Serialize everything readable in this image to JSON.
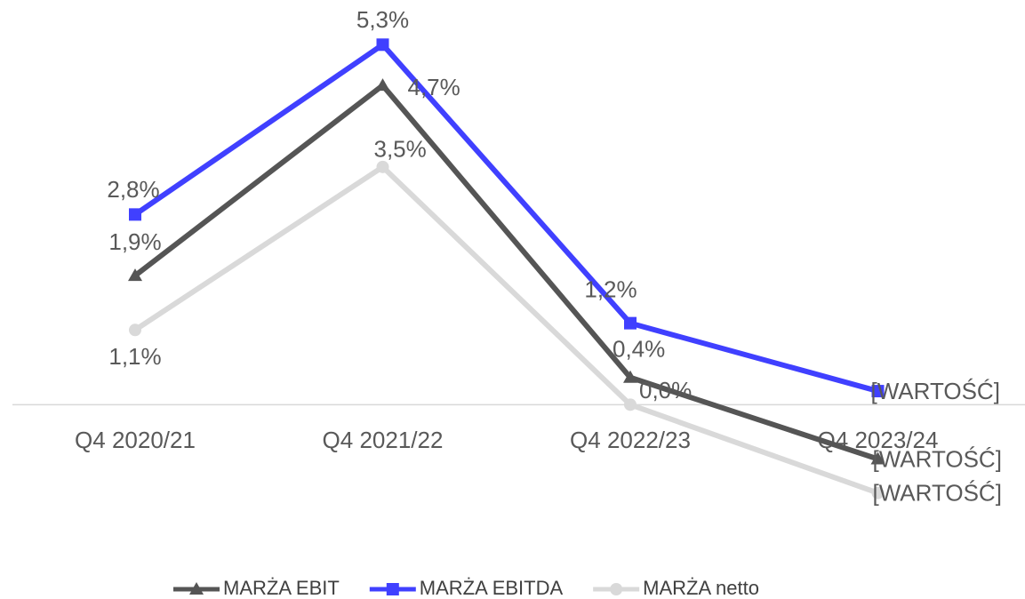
{
  "chart_data": {
    "type": "line",
    "categories": [
      "Q4 2020/21",
      "Q4 2021/22",
      "Q4 2022/23",
      "Q4 2023/24"
    ],
    "ylim": [
      -1.5,
      5.5
    ],
    "legend": "bottom",
    "series": [
      {
        "name": "MARŻA EBIT",
        "color": "#555555",
        "marker": "triangle",
        "values": [
          1.9,
          4.7,
          0.4,
          -0.8
        ],
        "value_labels": [
          "1,9%",
          "4,7%",
          "0,4%",
          "[WARTOŚĆ]"
        ]
      },
      {
        "name": "MARŻA EBITDA",
        "color": "#4040ff",
        "marker": "square",
        "values": [
          2.8,
          5.3,
          1.2,
          0.2
        ],
        "value_labels": [
          "2,8%",
          "5,3%",
          "1,2%",
          "[WARTOŚĆ]"
        ]
      },
      {
        "name": "MARŻA netto",
        "color": "#d9d9d9",
        "marker": "circle",
        "values": [
          1.1,
          3.5,
          0.0,
          -1.3
        ],
        "value_labels": [
          "1,1%",
          "3,5%",
          "0,0%",
          "[WARTOŚĆ]"
        ]
      }
    ]
  }
}
